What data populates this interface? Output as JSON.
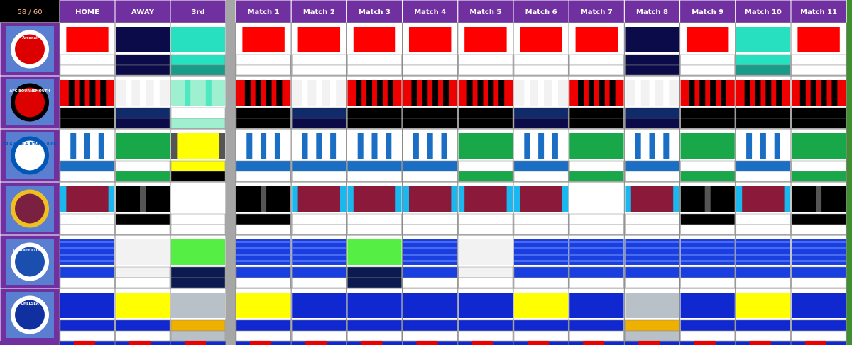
{
  "header": {
    "counter": "58 / 60",
    "columns": [
      "HOME",
      "AWAY",
      "3rd",
      "Match 1",
      "Match 2",
      "Match 3",
      "Match 4",
      "Match 5",
      "Match 6",
      "Match 7",
      "Match 8",
      "Match 9",
      "Match 10",
      "Match 11"
    ]
  },
  "badges": [
    "Arsenal",
    "AFC BOURNEMOUTH",
    "BRIGHTON & HOVE ALBION",
    null,
    "CARDIFF CITY FC",
    "CHELSEA"
  ]
}
